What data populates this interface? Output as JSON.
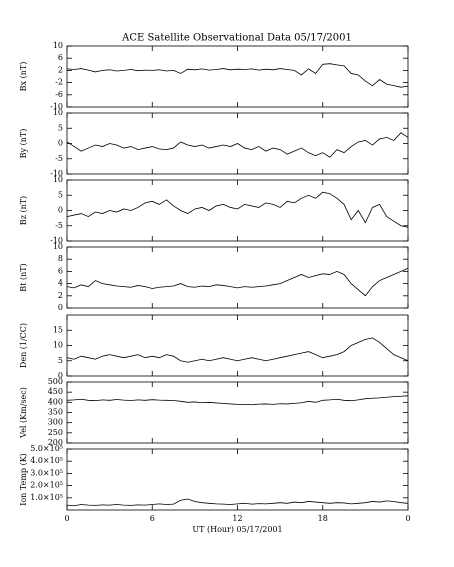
{
  "chart_data": [
    {
      "type": "line",
      "title": "ACE Satellite Observational Data   05/17/2001",
      "ylabel": "Bx (nT)",
      "color": "#000000",
      "x": [
        0,
        0.5,
        1,
        1.5,
        2,
        2.5,
        3,
        3.5,
        4,
        4.5,
        5,
        5.5,
        6,
        6.5,
        7,
        7.5,
        8,
        8.5,
        9,
        9.5,
        10,
        10.5,
        11,
        11.5,
        12,
        12.5,
        13,
        13.5,
        14,
        14.5,
        15,
        15.5,
        16,
        16.5,
        17,
        17.5,
        18,
        18.5,
        19,
        19.5,
        20,
        20.5,
        21,
        21.5,
        22,
        22.5,
        23,
        23.5,
        24
      ],
      "values": [
        2.5,
        2.3,
        2.6,
        2.1,
        1.5,
        2.0,
        2.2,
        1.8,
        2.0,
        2.3,
        1.9,
        2.1,
        2.0,
        2.2,
        1.8,
        2.0,
        1.0,
        2.4,
        2.2,
        2.5,
        2.1,
        2.3,
        2.6,
        2.2,
        2.4,
        2.3,
        2.5,
        2.1,
        2.4,
        2.2,
        2.6,
        2.3,
        2.0,
        0.5,
        2.5,
        1.0,
        4.0,
        4.2,
        3.8,
        3.5,
        1.0,
        0.5,
        -1.5,
        -3.0,
        -1.0,
        -2.5,
        -3.0,
        -3.5,
        -3.2
      ],
      "xlim": [
        0,
        24
      ],
      "ylim": [
        -10,
        10
      ],
      "yticks": [
        10,
        6,
        2,
        -2,
        -6,
        -10
      ]
    },
    {
      "type": "line",
      "ylabel": "By (nT)",
      "color": "#000000",
      "x": [
        0,
        0.5,
        1,
        1.5,
        2,
        2.5,
        3,
        3.5,
        4,
        4.5,
        5,
        5.5,
        6,
        6.5,
        7,
        7.5,
        8,
        8.5,
        9,
        9.5,
        10,
        10.5,
        11,
        11.5,
        12,
        12.5,
        13,
        13.5,
        14,
        14.5,
        15,
        15.5,
        16,
        16.5,
        17,
        17.5,
        18,
        18.5,
        19,
        19.5,
        20,
        20.5,
        21,
        21.5,
        22,
        22.5,
        23,
        23.5,
        24
      ],
      "values": [
        0.5,
        -1.0,
        -2.5,
        -1.5,
        -0.5,
        -1.0,
        0.0,
        -0.5,
        -1.5,
        -1.0,
        -2.0,
        -1.5,
        -1.0,
        -1.8,
        -2.0,
        -1.5,
        0.5,
        -0.5,
        -1.0,
        -0.5,
        -1.5,
        -1.0,
        -0.5,
        -1.0,
        0.0,
        -1.5,
        -2.0,
        -1.0,
        -2.5,
        -1.5,
        -2.0,
        -3.5,
        -2.5,
        -1.5,
        -3.0,
        -4.0,
        -3.0,
        -4.5,
        -2.0,
        -3.0,
        -1.0,
        0.5,
        1.0,
        -0.5,
        1.5,
        2.0,
        1.0,
        3.5,
        2.0
      ],
      "xlim": [
        0,
        24
      ],
      "ylim": [
        -10,
        10
      ],
      "yticks": [
        10,
        5,
        0,
        -5,
        -10
      ]
    },
    {
      "type": "line",
      "ylabel": "Bz (nT)",
      "color": "#000000",
      "x": [
        0,
        0.5,
        1,
        1.5,
        2,
        2.5,
        3,
        3.5,
        4,
        4.5,
        5,
        5.5,
        6,
        6.5,
        7,
        7.5,
        8,
        8.5,
        9,
        9.5,
        10,
        10.5,
        11,
        11.5,
        12,
        12.5,
        13,
        13.5,
        14,
        14.5,
        15,
        15.5,
        16,
        16.5,
        17,
        17.5,
        18,
        18.5,
        19,
        19.5,
        20,
        20.5,
        21,
        21.5,
        22,
        22.5,
        23,
        23.5,
        24
      ],
      "values": [
        -2.0,
        -1.5,
        -1.0,
        -2.0,
        -0.5,
        -1.0,
        0.0,
        -0.5,
        0.5,
        0.0,
        1.0,
        2.5,
        3.0,
        2.0,
        3.5,
        1.5,
        0.0,
        -1.0,
        0.5,
        1.0,
        0.0,
        1.5,
        2.0,
        1.0,
        0.5,
        2.0,
        1.5,
        1.0,
        2.5,
        2.0,
        1.0,
        3.0,
        2.5,
        4.0,
        5.0,
        4.0,
        6.0,
        5.5,
        4.0,
        2.0,
        -3.0,
        0.0,
        -4.0,
        1.0,
        2.0,
        -2.0,
        -3.5,
        -5.0,
        -5.5
      ],
      "xlim": [
        0,
        24
      ],
      "ylim": [
        -10,
        10
      ],
      "yticks": [
        10,
        5,
        0,
        -5,
        -10
      ]
    },
    {
      "type": "line",
      "ylabel": "Bt (nT)",
      "color": "#000000",
      "x": [
        0,
        0.5,
        1,
        1.5,
        2,
        2.5,
        3,
        3.5,
        4,
        4.5,
        5,
        5.5,
        6,
        6.5,
        7,
        7.5,
        8,
        8.5,
        9,
        9.5,
        10,
        10.5,
        11,
        11.5,
        12,
        12.5,
        13,
        13.5,
        14,
        14.5,
        15,
        15.5,
        16,
        16.5,
        17,
        17.5,
        18,
        18.5,
        19,
        19.5,
        20,
        20.5,
        21,
        21.5,
        22,
        22.5,
        23,
        23.5,
        24
      ],
      "values": [
        3.5,
        3.3,
        3.8,
        3.5,
        4.5,
        4.0,
        3.8,
        3.6,
        3.5,
        3.4,
        3.7,
        3.5,
        3.2,
        3.4,
        3.5,
        3.6,
        4.0,
        3.5,
        3.4,
        3.6,
        3.5,
        3.8,
        3.7,
        3.5,
        3.3,
        3.5,
        3.4,
        3.5,
        3.6,
        3.8,
        4.0,
        4.5,
        5.0,
        5.5,
        5.0,
        5.3,
        5.6,
        5.5,
        6.0,
        5.5,
        4.0,
        3.0,
        2.0,
        3.5,
        4.5,
        5.0,
        5.5,
        6.0,
        6.5
      ],
      "xlim": [
        0,
        24
      ],
      "ylim": [
        0,
        10
      ],
      "yticks": [
        10,
        8,
        6,
        4,
        2,
        0
      ]
    },
    {
      "type": "line",
      "ylabel": "Den (1/CC)",
      "color": "#000000",
      "x": [
        0,
        0.5,
        1,
        1.5,
        2,
        2.5,
        3,
        3.5,
        4,
        4.5,
        5,
        5.5,
        6,
        6.5,
        7,
        7.5,
        8,
        8.5,
        9,
        9.5,
        10,
        10.5,
        11,
        11.5,
        12,
        12.5,
        13,
        13.5,
        14,
        14.5,
        15,
        15.5,
        16,
        16.5,
        17,
        17.5,
        18,
        18.5,
        19,
        19.5,
        20,
        20.5,
        21,
        21.5,
        22,
        22.5,
        23,
        23.5,
        24
      ],
      "values": [
        6,
        5.5,
        6.5,
        6,
        5.5,
        6.5,
        7,
        6.5,
        6,
        6.5,
        7,
        6,
        6.5,
        6,
        7,
        6.5,
        5,
        4.5,
        5,
        5.5,
        5,
        5.5,
        6,
        5.5,
        5,
        5.5,
        6,
        5.5,
        5,
        5.5,
        6,
        6.5,
        7,
        7.5,
        8,
        7,
        6,
        6.5,
        7,
        8,
        10,
        11,
        12,
        12.5,
        11,
        9,
        7,
        6,
        5
      ],
      "xlim": [
        0,
        24
      ],
      "ylim": [
        0,
        20
      ],
      "yticks": [
        15,
        10,
        5,
        0
      ]
    },
    {
      "type": "line",
      "ylabel": "Vel (Km/sec)",
      "color": "#000000",
      "x": [
        0,
        0.5,
        1,
        1.5,
        2,
        2.5,
        3,
        3.5,
        4,
        4.5,
        5,
        5.5,
        6,
        6.5,
        7,
        7.5,
        8,
        8.5,
        9,
        9.5,
        10,
        10.5,
        11,
        11.5,
        12,
        12.5,
        13,
        13.5,
        14,
        14.5,
        15,
        15.5,
        16,
        16.5,
        17,
        17.5,
        18,
        18.5,
        19,
        19.5,
        20,
        20.5,
        21,
        21.5,
        22,
        22.5,
        23,
        23.5,
        24
      ],
      "values": [
        410,
        412,
        415,
        410,
        408,
        412,
        410,
        414,
        411,
        409,
        412,
        410,
        413,
        411,
        410,
        409,
        405,
        400,
        402,
        398,
        400,
        397,
        395,
        392,
        390,
        390,
        388,
        391,
        392,
        390,
        393,
        392,
        395,
        398,
        405,
        400,
        410,
        412,
        415,
        410,
        408,
        412,
        418,
        420,
        422,
        425,
        428,
        430,
        432
      ],
      "xlim": [
        0,
        24
      ],
      "ylim": [
        200,
        500
      ],
      "yticks": [
        500,
        450,
        400,
        350,
        300,
        250,
        200
      ]
    },
    {
      "type": "line",
      "ylabel": "Ion Temp (K)",
      "xlabel": "UT (Hour)  05/17/2001",
      "color": "#000000",
      "x": [
        0,
        0.5,
        1,
        1.5,
        2,
        2.5,
        3,
        3.5,
        4,
        4.5,
        5,
        5.5,
        6,
        6.5,
        7,
        7.5,
        8,
        8.5,
        9,
        9.5,
        10,
        10.5,
        11,
        11.5,
        12,
        12.5,
        13,
        13.5,
        14,
        14.5,
        15,
        15.5,
        16,
        16.5,
        17,
        17.5,
        18,
        18.5,
        19,
        19.5,
        20,
        20.5,
        21,
        21.5,
        22,
        22.5,
        23,
        23.5,
        24
      ],
      "values": [
        40000,
        35000,
        45000,
        40000,
        38000,
        42000,
        40000,
        45000,
        40000,
        38000,
        42000,
        40000,
        45000,
        50000,
        45000,
        48000,
        80000,
        90000,
        70000,
        60000,
        55000,
        50000,
        48000,
        45000,
        50000,
        55000,
        48000,
        52000,
        50000,
        55000,
        60000,
        55000,
        65000,
        60000,
        70000,
        65000,
        60000,
        55000,
        60000,
        58000,
        50000,
        55000,
        60000,
        70000,
        65000,
        75000,
        70000,
        60000,
        55000
      ],
      "xlim": [
        0,
        24
      ],
      "ylim": [
        0,
        500000
      ],
      "yticks": [
        {
          "value": 500000,
          "label": "5.0×10⁵"
        },
        {
          "value": 400000,
          "label": "4.0×10⁵"
        },
        {
          "value": 300000,
          "label": "3.0×10⁵"
        },
        {
          "value": 200000,
          "label": "2.0×10⁵"
        },
        {
          "value": 100000,
          "label": "1.0×10⁵"
        }
      ],
      "xticks": [
        0,
        6,
        12,
        18,
        {
          "value": 24,
          "label": "0"
        }
      ]
    }
  ]
}
